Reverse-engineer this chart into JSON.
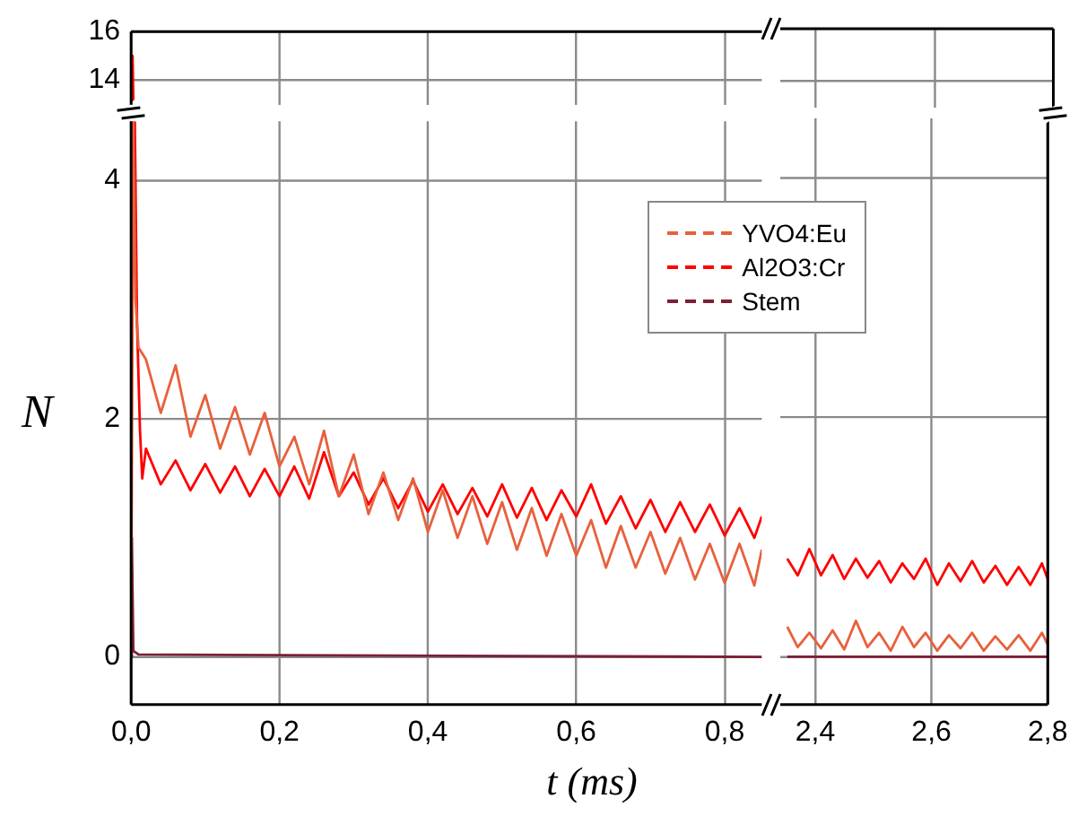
{
  "chart_data": [
    {
      "type": "line",
      "xlim": [
        0,
        0.85
      ],
      "ylim": [
        13,
        16
      ],
      "tick_labels": "y",
      "grid": true,
      "xticks": [
        0,
        0.2,
        0.4,
        0.6,
        0.8
      ],
      "yticks": [
        14,
        16
      ],
      "series": [
        {
          "color": "#ff0000",
          "x": [
            0.001,
            0.002,
            0.003
          ],
          "values": [
            13.2,
            15.0,
            13.2
          ]
        }
      ]
    },
    {
      "type": "line",
      "xlim": [
        2.34,
        2.8
      ],
      "ylim": [
        13,
        16
      ],
      "tick_labels": false,
      "grid": true,
      "xticks": [
        2.4,
        2.6,
        2.8
      ],
      "yticks": [
        14,
        16
      ]
    },
    {
      "type": "line",
      "xlabel": "t (ms)",
      "ylabel": "N",
      "xlim": [
        0,
        0.85
      ],
      "ylim": [
        -0.4,
        4.5
      ],
      "grid": true,
      "legend": "top right",
      "xticks": [
        {
          "value": 0,
          "label": "0,0"
        },
        {
          "value": 0.2,
          "label": "0,2"
        },
        {
          "value": 0.4,
          "label": "0,4"
        },
        {
          "value": 0.6,
          "label": "0,6"
        },
        {
          "value": 0.8,
          "label": "0,8"
        }
      ],
      "yticks": [
        0,
        2,
        4
      ],
      "series": [
        {
          "name": "YVO4:Eu",
          "color": "#e8603c",
          "x": [
            0,
            0.003,
            0.006,
            0.01,
            0.02,
            0.04,
            0.06,
            0.08,
            0.1,
            0.12,
            0.14,
            0.16,
            0.18,
            0.2,
            0.22,
            0.24,
            0.26,
            0.28,
            0.3,
            0.32,
            0.34,
            0.36,
            0.38,
            0.4,
            0.42,
            0.44,
            0.46,
            0.48,
            0.5,
            0.52,
            0.54,
            0.56,
            0.58,
            0.6,
            0.62,
            0.64,
            0.66,
            0.68,
            0.7,
            0.72,
            0.74,
            0.76,
            0.78,
            0.8,
            0.82,
            0.84,
            0.85
          ],
          "values": [
            0,
            4.5,
            3.0,
            2.6,
            2.5,
            2.05,
            2.45,
            1.85,
            2.2,
            1.75,
            2.1,
            1.7,
            2.05,
            1.6,
            1.85,
            1.45,
            1.9,
            1.35,
            1.7,
            1.2,
            1.55,
            1.15,
            1.5,
            1.05,
            1.4,
            1.0,
            1.35,
            0.95,
            1.3,
            0.9,
            1.25,
            0.85,
            1.2,
            0.85,
            1.15,
            0.75,
            1.1,
            0.75,
            1.05,
            0.7,
            1.0,
            0.65,
            0.95,
            0.62,
            0.95,
            0.6,
            0.9
          ]
        },
        {
          "name": "Al2O3:Cr",
          "color": "#ff0000",
          "x": [
            0.005,
            0.008,
            0.012,
            0.015,
            0.02,
            0.04,
            0.06,
            0.08,
            0.1,
            0.12,
            0.14,
            0.16,
            0.18,
            0.2,
            0.22,
            0.24,
            0.26,
            0.28,
            0.3,
            0.32,
            0.34,
            0.36,
            0.38,
            0.4,
            0.42,
            0.44,
            0.46,
            0.48,
            0.5,
            0.52,
            0.54,
            0.56,
            0.58,
            0.6,
            0.62,
            0.64,
            0.66,
            0.68,
            0.7,
            0.72,
            0.74,
            0.76,
            0.78,
            0.8,
            0.82,
            0.84,
            0.85
          ],
          "values": [
            4.5,
            2.8,
            1.9,
            1.5,
            1.75,
            1.45,
            1.65,
            1.4,
            1.62,
            1.38,
            1.6,
            1.35,
            1.58,
            1.35,
            1.6,
            1.33,
            1.72,
            1.35,
            1.55,
            1.28,
            1.5,
            1.25,
            1.48,
            1.22,
            1.45,
            1.2,
            1.42,
            1.18,
            1.45,
            1.17,
            1.42,
            1.15,
            1.4,
            1.18,
            1.45,
            1.12,
            1.35,
            1.08,
            1.32,
            1.05,
            1.3,
            1.05,
            1.28,
            1.02,
            1.25,
            1.0,
            1.18
          ]
        },
        {
          "name": "Stem",
          "color": "#7b2035",
          "x": [
            0,
            0.001,
            0.003,
            0.01,
            0.85
          ],
          "values": [
            0,
            1.0,
            0.05,
            0.02,
            0
          ]
        }
      ]
    },
    {
      "type": "line",
      "xlim": [
        2.34,
        2.8
      ],
      "ylim": [
        -0.4,
        4.5
      ],
      "tick_labels": "x",
      "grid": true,
      "xticks": [
        {
          "value": 2.4,
          "label": "2,4"
        },
        {
          "value": 2.6,
          "label": "2,6"
        },
        {
          "value": 2.8,
          "label": "2,8"
        }
      ],
      "yticks": [
        0,
        2,
        4
      ],
      "series": [
        {
          "color": "#e8603c",
          "x": [
            2.352,
            2.37,
            2.39,
            2.41,
            2.43,
            2.45,
            2.47,
            2.49,
            2.51,
            2.53,
            2.55,
            2.57,
            2.59,
            2.61,
            2.63,
            2.65,
            2.67,
            2.69,
            2.71,
            2.73,
            2.75,
            2.77,
            2.79,
            2.8
          ],
          "values": [
            0.25,
            0.08,
            0.2,
            0.07,
            0.22,
            0.06,
            0.3,
            0.08,
            0.2,
            0.05,
            0.25,
            0.08,
            0.2,
            0.05,
            0.18,
            0.07,
            0.2,
            0.05,
            0.17,
            0.06,
            0.18,
            0.05,
            0.2,
            0.1
          ]
        },
        {
          "color": "#ff0000",
          "x": [
            2.352,
            2.37,
            2.39,
            2.41,
            2.43,
            2.45,
            2.47,
            2.49,
            2.51,
            2.53,
            2.55,
            2.57,
            2.59,
            2.61,
            2.63,
            2.65,
            2.67,
            2.69,
            2.71,
            2.73,
            2.75,
            2.77,
            2.79,
            2.8
          ],
          "values": [
            0.82,
            0.68,
            0.9,
            0.68,
            0.85,
            0.65,
            0.82,
            0.66,
            0.8,
            0.62,
            0.78,
            0.65,
            0.82,
            0.6,
            0.78,
            0.63,
            0.8,
            0.62,
            0.76,
            0.6,
            0.75,
            0.6,
            0.78,
            0.65
          ]
        },
        {
          "color": "#7b2035",
          "x": [
            2.352,
            2.8
          ],
          "values": [
            0,
            0
          ]
        }
      ]
    }
  ]
}
